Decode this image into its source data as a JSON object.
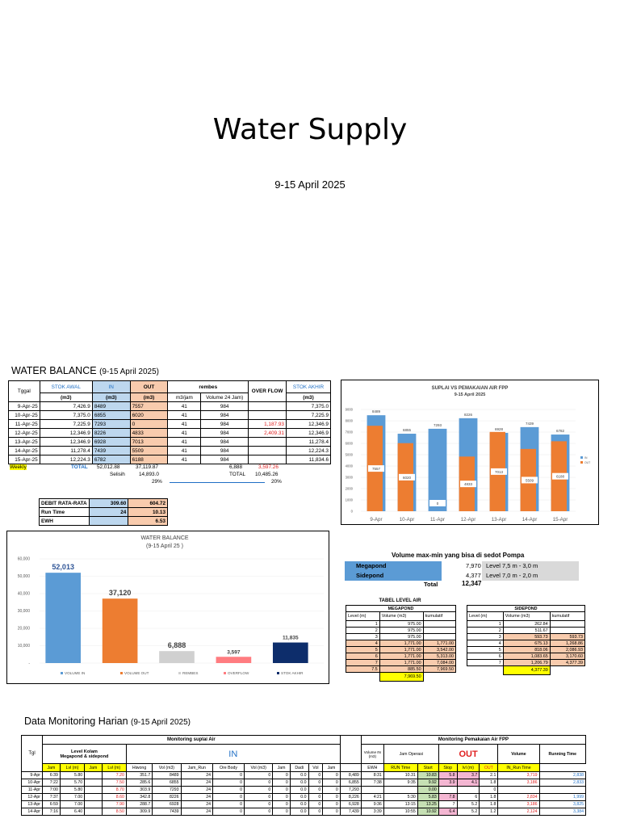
{
  "title": "Water Supply",
  "date": "9-15 April 2025",
  "water_balance": {
    "heading": "WATER BALANCE",
    "heading_sub": "(9-15 April 2025)",
    "headers": {
      "tanggal": "Tggal",
      "stok_awal": "STOK AWAL",
      "in": "IN",
      "out": "OUT",
      "rembes": "rembes",
      "overflow": "OVER FLOW",
      "stok_akhir": "STOK AKHIR",
      "m3": "(m3)",
      "m3jam": "m3/jam",
      "vol24": "Volume 24 Jam)"
    },
    "rows": [
      {
        "date": "9-Apr-25",
        "awal": "7,426.9",
        "in": "8489",
        "out": "7557",
        "m3jam": "41",
        "vol": "984",
        "of": "",
        "akhir": "7,375.0"
      },
      {
        "date": "10-Apr-25",
        "awal": "7,375.0",
        "in": "6855",
        "out": "6020",
        "m3jam": "41",
        "vol": "984",
        "of": "",
        "akhir": "7,225.9"
      },
      {
        "date": "11-Apr-25",
        "awal": "7,225.9",
        "in": "7293",
        "out": "0",
        "m3jam": "41",
        "vol": "984",
        "of": "1,187.93",
        "akhir": "12,346.9"
      },
      {
        "date": "12-Apr-25",
        "awal": "12,346.9",
        "in": "8226",
        "out": "4833",
        "m3jam": "41",
        "vol": "984",
        "of": "2,409.31",
        "akhir": "12,346.9"
      },
      {
        "date": "13-Apr-25",
        "awal": "12,346.9",
        "in": "6928",
        "out": "7013",
        "m3jam": "41",
        "vol": "984",
        "of": "",
        "akhir": "11,278.4"
      },
      {
        "date": "14-Apr-25",
        "awal": "11,278.4",
        "in": "7439",
        "out": "5509",
        "m3jam": "41",
        "vol": "984",
        "of": "",
        "akhir": "12,224.3"
      },
      {
        "date": "15-Apr-25",
        "awal": "12,224.3",
        "in": "6782",
        "out": "6188",
        "m3jam": "41",
        "vol": "984",
        "of": "",
        "akhir": "11,834.6"
      }
    ],
    "weekly_label": "Weekly",
    "total_label": "TOTAL",
    "total_in": "52,012.88",
    "total_out": "37,119.87",
    "total_rembes": "6,888",
    "total_of": "3,597.26",
    "selisih_label": "Selisih",
    "selisih": "14,893.0",
    "total2_label": "TOTAL",
    "total2": "10,485.26",
    "pct1": "29%",
    "pct2": "20%",
    "debit_label": "DEBIT RATA-RATA",
    "debit_in": "309.60",
    "debit_out": "604.72",
    "runtime_label": "Run Time",
    "runtime_in": "24",
    "runtime_out": "10.13",
    "ewh_label": "EWH",
    "ewh_out": "6.53"
  },
  "chart_data": [
    {
      "type": "bar",
      "title": "SUPLAI VS PEMAKAIAN AIR FPP",
      "subtitle": "9-15 April 2025",
      "categories": [
        "9-Apr",
        "10-Apr",
        "11-Apr",
        "12-Apr",
        "13-Apr",
        "14-Apr",
        "15-Apr"
      ],
      "series": [
        {
          "name": "IN",
          "values": [
            8489,
            6855,
            7293,
            8226,
            6928,
            7439,
            6782
          ],
          "color": "#5b9bd5"
        },
        {
          "name": "OUT",
          "values": [
            7557,
            6020,
            0,
            4833,
            7013,
            5509,
            6188
          ],
          "color": "#ed7d31"
        }
      ],
      "ylim": [
        0,
        9000
      ],
      "yticks": [
        "0",
        "1000",
        "2000",
        "3000",
        "4000",
        "5000",
        "6000",
        "7000",
        "8000",
        "9000"
      ],
      "legend": "right"
    },
    {
      "type": "bar",
      "title": "WATER BALANCE",
      "subtitle": "(9-15 April 25 )",
      "categories": [
        "VOLUME IN",
        "VOLUME OUT",
        "REMBES",
        "OVERFLOW",
        "STOK AKHIR"
      ],
      "values": [
        52013,
        37120,
        6888,
        3597,
        11835
      ],
      "labels": [
        "52,013",
        "37,120",
        "6,888",
        "3,597",
        "11,835"
      ],
      "colors": [
        "#5b9bd5",
        "#ed7d31",
        "#d0d0d0",
        "#ff7c80",
        "#0d2d6b"
      ],
      "ylim": [
        0,
        60000
      ],
      "yticks": [
        "-",
        "10,000",
        "20,000",
        "30,000",
        "40,000",
        "50,000",
        "60,000"
      ],
      "legend": "bottom"
    }
  ],
  "volume_maxmin": {
    "title": "Volume max-min yang bisa di sedot Pompa",
    "megapond_label": "Megapond",
    "megapond_val": "7,970",
    "megapond_level": "Level 7,5 m - 3,0 m",
    "sidepond_label": "Sidepond",
    "sidepond_val": "4,377",
    "sidepond_level": "Level 7,0 m - 2,0 m",
    "total_label": "Total",
    "total_val": "12,347"
  },
  "tabel_level": {
    "title": "TABEL LEVEL AIR",
    "megapond_title": "MEGAPOND",
    "sidepond_title": "SIDEPOND",
    "cols": [
      "Level (m)",
      "Volume (m3)",
      "kumulatif"
    ],
    "megapond_rows": [
      [
        "1",
        "975.00",
        ""
      ],
      [
        "2",
        "975.00",
        ""
      ],
      [
        "3",
        "975.00",
        ""
      ],
      [
        "4",
        "1,771.00",
        "1,771.00"
      ],
      [
        "5",
        "1,771.00",
        "3,542.00"
      ],
      [
        "6",
        "1,771.00",
        "5,313.00"
      ],
      [
        "7",
        "1,771.00",
        "7,084.00"
      ],
      [
        "7.5",
        "885.50",
        "7,969.50"
      ]
    ],
    "megapond_total": "7,969.50",
    "sidepond_rows": [
      [
        "1",
        "262.84",
        ""
      ],
      [
        "2",
        "511.67",
        ""
      ],
      [
        "3",
        "593.73",
        "593.73"
      ],
      [
        "4",
        "675.13",
        "1,268.86"
      ],
      [
        "5",
        "818.06",
        "2,086.93"
      ],
      [
        "6",
        "1,083.65",
        "3,170.60"
      ],
      [
        "7",
        "1,206.79",
        "4,377.39"
      ]
    ],
    "sidepond_total": "4,377.39"
  },
  "monitoring": {
    "heading": "Data Monitoring Harian",
    "heading_sub": "(9-15 April 2025)",
    "suplai_title": "Monitoring suplai Air",
    "pemakaian_title": "Monitoring Pemakaian Air FPP",
    "tgl": "Tgl",
    "level_kolam": "Level Kolam",
    "level_kolam2": "Megapond & sidepond",
    "in_label": "IN",
    "out_label": "OUT",
    "volume_in": "Volume IN (m3)",
    "jam_operasi": "Jam Operasi",
    "volume_label": "Volume",
    "running_time": "Running Time",
    "sub": [
      "Jam",
      "Lvl (m)",
      "Jam",
      "Lvl (m)",
      "Hiwong",
      "Vol (m3)",
      "Jam_Run",
      "Ore Body",
      "Vol (m3)",
      "Jam",
      "Dadi",
      "Vol",
      "Jam",
      "",
      "EWH",
      "RUN Time",
      "Start",
      "Stop",
      "lvl (m)",
      "OUT",
      "IN_Run Time"
    ],
    "rows": [
      [
        "9-Apr",
        "6:39",
        "5.80",
        "",
        "7.20",
        "351.7",
        "8489",
        "24",
        "0",
        "0",
        "0",
        "0.0",
        "0",
        "0",
        "8,489",
        "8:31",
        "10.31",
        "10.83",
        "5.8",
        "3.7",
        "2.1",
        "3,719",
        "2,838"
      ],
      [
        "10-Apr",
        "7:22",
        "5.70",
        "",
        "7.50",
        "285.6",
        "6855",
        "24",
        "0",
        "0",
        "0",
        "0.0",
        "0",
        "0",
        "6,855",
        "7:38",
        "9:35",
        "9.92",
        "3.9",
        "4.1",
        "1.8",
        "3,186",
        "2,833"
      ],
      [
        "11-Apr",
        "7:00",
        "5.80",
        "",
        "8.70",
        "303.9",
        "7293",
        "24",
        "0",
        "0",
        "0",
        "0.0",
        "0",
        "0",
        "7,293",
        "",
        "",
        "0.00",
        "",
        "",
        "0",
        "",
        ""
      ],
      [
        "12-Apr",
        "7:37",
        "7.00",
        "",
        "8.60",
        "342.8",
        "8226",
        "24",
        "0",
        "0",
        "0",
        "0.0",
        "0",
        "0",
        "8,226",
        "4:21",
        "5:30",
        "5.83",
        "7.8",
        "6",
        "1.8",
        "2,834",
        "1,999"
      ],
      [
        "13-Apr",
        "6:59",
        "7.00",
        "",
        "7.90",
        "288.7",
        "6928",
        "24",
        "0",
        "0",
        "0",
        "0.0",
        "0",
        "0",
        "6,928",
        "9:36",
        "13:15",
        "13.25",
        "7",
        "5.2",
        "1.8",
        "3,186",
        "3,825"
      ],
      [
        "14-Apr",
        "7:16",
        "6.40",
        "",
        "8.50",
        "309.9",
        "7439",
        "24",
        "0",
        "0",
        "0",
        "0.0",
        "0",
        "0",
        "7,439",
        "3:39",
        "10:55",
        "10.92",
        "6.4",
        "5.2",
        "1.2",
        "2,124",
        "3,384"
      ]
    ]
  }
}
